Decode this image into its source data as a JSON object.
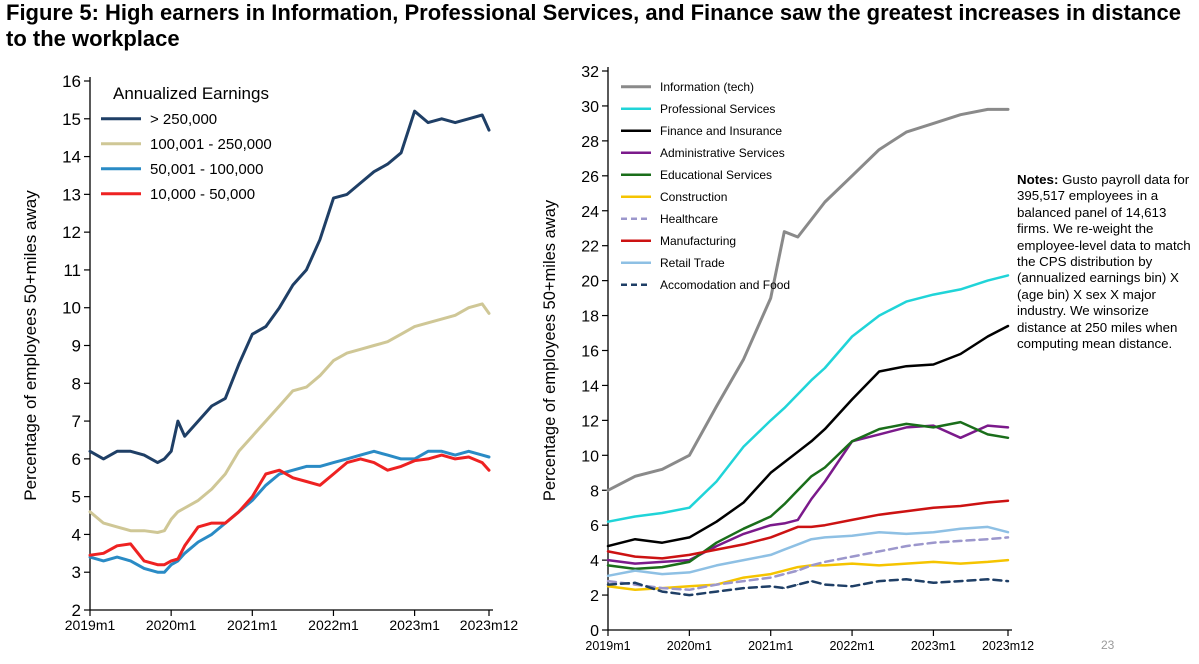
{
  "title": "Figure 5: High earners in Information, Professional Services, and Finance saw the greatest increases in distance to the workplace",
  "slide_number": "23",
  "notes": {
    "label": "Notes:",
    "text": "Gusto payroll data for 395,517 employees in a balanced panel of 14,613 firms. We re-weight the employee-level data to match the CPS distribution by (annualized earnings bin) X (age bin) X sex X major industry. We winsorize distance at 250 miles when computing mean distance."
  },
  "chart_data": [
    {
      "type": "line",
      "title": "",
      "legend_title": "Annualized Earnings",
      "legend_position": "top-left",
      "xlabel": "",
      "ylabel": "Percentage of employees 50+miles away",
      "xlim": [
        0,
        59
      ],
      "ylim": [
        2,
        16
      ],
      "yticks": [
        2,
        3,
        4,
        5,
        6,
        7,
        8,
        9,
        10,
        11,
        12,
        13,
        14,
        15,
        16
      ],
      "xticks": [
        {
          "value": 0,
          "label": "2019m1"
        },
        {
          "value": 12,
          "label": "2020m1"
        },
        {
          "value": 24,
          "label": "2021m1"
        },
        {
          "value": 36,
          "label": "2022m1"
        },
        {
          "value": 48,
          "label": "2023m1"
        },
        {
          "value": 59,
          "label": "2023m12"
        }
      ],
      "grid": false,
      "anchors": [
        0,
        2,
        4,
        6,
        8,
        10,
        11,
        12,
        13,
        14,
        16,
        18,
        20,
        22,
        24,
        26,
        28,
        30,
        32,
        34,
        36,
        38,
        40,
        42,
        44,
        46,
        48,
        50,
        52,
        54,
        56,
        58,
        59
      ],
      "series": [
        {
          "name": "> 250,000",
          "color": "#1f3f66",
          "width": 3,
          "dash": "",
          "values": [
            6.2,
            6.0,
            6.2,
            6.2,
            6.1,
            5.9,
            6.0,
            6.2,
            7.0,
            6.6,
            7.0,
            7.4,
            7.6,
            8.5,
            9.3,
            9.5,
            10.0,
            10.6,
            11.0,
            11.8,
            12.9,
            13.0,
            13.3,
            13.6,
            13.8,
            14.1,
            15.2,
            14.9,
            15.0,
            14.9,
            15.0,
            15.1,
            14.7
          ]
        },
        {
          "name": "100,001 - 250,000",
          "color": "#cfc796",
          "width": 3,
          "dash": "",
          "values": [
            4.6,
            4.3,
            4.2,
            4.1,
            4.1,
            4.05,
            4.1,
            4.4,
            4.6,
            4.7,
            4.9,
            5.2,
            5.6,
            6.2,
            6.6,
            7.0,
            7.4,
            7.8,
            7.9,
            8.2,
            8.6,
            8.8,
            8.9,
            9.0,
            9.1,
            9.3,
            9.5,
            9.6,
            9.7,
            9.8,
            10.0,
            10.1,
            9.85
          ]
        },
        {
          "name": "50,001 - 100,000",
          "color": "#2a8bc5",
          "width": 3,
          "dash": "",
          "values": [
            3.4,
            3.3,
            3.4,
            3.3,
            3.1,
            3.0,
            3.0,
            3.2,
            3.3,
            3.5,
            3.8,
            4.0,
            4.3,
            4.6,
            4.9,
            5.3,
            5.6,
            5.7,
            5.8,
            5.8,
            5.9,
            6.0,
            6.1,
            6.2,
            6.1,
            6.0,
            6.0,
            6.2,
            6.2,
            6.1,
            6.2,
            6.1,
            6.05
          ]
        },
        {
          "name": "10,000 - 50,000",
          "color": "#ee2222",
          "width": 3,
          "dash": "",
          "values": [
            3.45,
            3.5,
            3.7,
            3.75,
            3.3,
            3.2,
            3.2,
            3.3,
            3.35,
            3.7,
            4.2,
            4.3,
            4.3,
            4.6,
            5.0,
            5.6,
            5.7,
            5.5,
            5.4,
            5.3,
            5.6,
            5.9,
            6.0,
            5.9,
            5.7,
            5.8,
            5.95,
            6.0,
            6.1,
            6.0,
            6.05,
            5.9,
            5.7
          ]
        }
      ]
    },
    {
      "type": "line",
      "title": "",
      "legend_position": "top-left",
      "xlabel": "",
      "ylabel": "Percentage of employees 50+miles away",
      "xlim": [
        0,
        59
      ],
      "ylim": [
        0,
        32
      ],
      "yticks": [
        0,
        2,
        4,
        6,
        8,
        10,
        12,
        14,
        16,
        18,
        20,
        22,
        24,
        26,
        28,
        30,
        32
      ],
      "xticks": [
        {
          "value": 0,
          "label": "2019m1"
        },
        {
          "value": 12,
          "label": "2020m1"
        },
        {
          "value": 24,
          "label": "2021m1"
        },
        {
          "value": 36,
          "label": "2022m1"
        },
        {
          "value": 48,
          "label": "2023m1"
        },
        {
          "value": 59,
          "label": "2023m12"
        }
      ],
      "grid": false,
      "anchors": [
        0,
        4,
        8,
        12,
        16,
        20,
        24,
        26,
        28,
        30,
        32,
        36,
        40,
        44,
        48,
        52,
        56,
        59
      ],
      "series": [
        {
          "name": "Information (tech)",
          "color": "#8a8a8a",
          "width": 3,
          "dash": "",
          "values": [
            8.0,
            8.8,
            9.2,
            10.0,
            12.8,
            15.5,
            19.0,
            22.8,
            22.5,
            23.5,
            24.5,
            26.0,
            27.5,
            28.5,
            29.0,
            29.5,
            29.8,
            29.8
          ]
        },
        {
          "name": "Professional Services",
          "color": "#20d4d8",
          "width": 2.5,
          "dash": "",
          "values": [
            6.2,
            6.5,
            6.7,
            7.0,
            8.5,
            10.5,
            12.0,
            12.7,
            13.5,
            14.3,
            15.0,
            16.8,
            18.0,
            18.8,
            19.2,
            19.5,
            20.0,
            20.3
          ]
        },
        {
          "name": "Finance and Insurance",
          "color": "#000000",
          "width": 2.5,
          "dash": "",
          "values": [
            4.8,
            5.2,
            5.0,
            5.3,
            6.2,
            7.3,
            9.0,
            9.6,
            10.2,
            10.8,
            11.5,
            13.2,
            14.8,
            15.1,
            15.2,
            15.8,
            16.8,
            17.4
          ]
        },
        {
          "name": "Administrative Services",
          "color": "#7b1a8b",
          "width": 2.5,
          "dash": "",
          "values": [
            4.0,
            3.8,
            3.9,
            4.0,
            4.8,
            5.5,
            6.0,
            6.1,
            6.3,
            7.5,
            8.5,
            10.8,
            11.2,
            11.6,
            11.7,
            11.0,
            11.7,
            11.6
          ]
        },
        {
          "name": "Educational Services",
          "color": "#1a6e1a",
          "width": 2.5,
          "dash": "",
          "values": [
            3.7,
            3.5,
            3.6,
            3.9,
            5.0,
            5.8,
            6.5,
            7.2,
            8.0,
            8.8,
            9.3,
            10.8,
            11.5,
            11.8,
            11.6,
            11.9,
            11.2,
            11.0
          ]
        },
        {
          "name": "Construction",
          "color": "#f5c400",
          "width": 2.5,
          "dash": "",
          "values": [
            2.5,
            2.3,
            2.4,
            2.5,
            2.6,
            3.0,
            3.2,
            3.4,
            3.6,
            3.7,
            3.7,
            3.8,
            3.7,
            3.8,
            3.9,
            3.8,
            3.9,
            4.0
          ]
        },
        {
          "name": "Healthcare",
          "color": "#9c97cc",
          "width": 2.5,
          "dash": "8,5",
          "values": [
            2.8,
            2.6,
            2.4,
            2.3,
            2.6,
            2.8,
            3.0,
            3.2,
            3.4,
            3.7,
            3.9,
            4.2,
            4.5,
            4.8,
            5.0,
            5.1,
            5.2,
            5.3
          ]
        },
        {
          "name": "Manufacturing",
          "color": "#cc1212",
          "width": 2.5,
          "dash": "",
          "values": [
            4.5,
            4.2,
            4.1,
            4.3,
            4.6,
            4.9,
            5.3,
            5.6,
            5.9,
            5.9,
            6.0,
            6.3,
            6.6,
            6.8,
            7.0,
            7.1,
            7.3,
            7.4
          ]
        },
        {
          "name": "Retail Trade",
          "color": "#8ec0e4",
          "width": 2.5,
          "dash": "",
          "values": [
            3.1,
            3.4,
            3.2,
            3.3,
            3.7,
            4.0,
            4.3,
            4.6,
            4.9,
            5.2,
            5.3,
            5.4,
            5.6,
            5.5,
            5.6,
            5.8,
            5.9,
            5.6
          ]
        },
        {
          "name": "Accomodation and Food",
          "color": "#1f3f66",
          "width": 2.5,
          "dash": "8,5",
          "values": [
            2.6,
            2.7,
            2.2,
            2.0,
            2.2,
            2.4,
            2.5,
            2.4,
            2.6,
            2.8,
            2.6,
            2.5,
            2.8,
            2.9,
            2.7,
            2.8,
            2.9,
            2.8
          ]
        }
      ]
    }
  ]
}
